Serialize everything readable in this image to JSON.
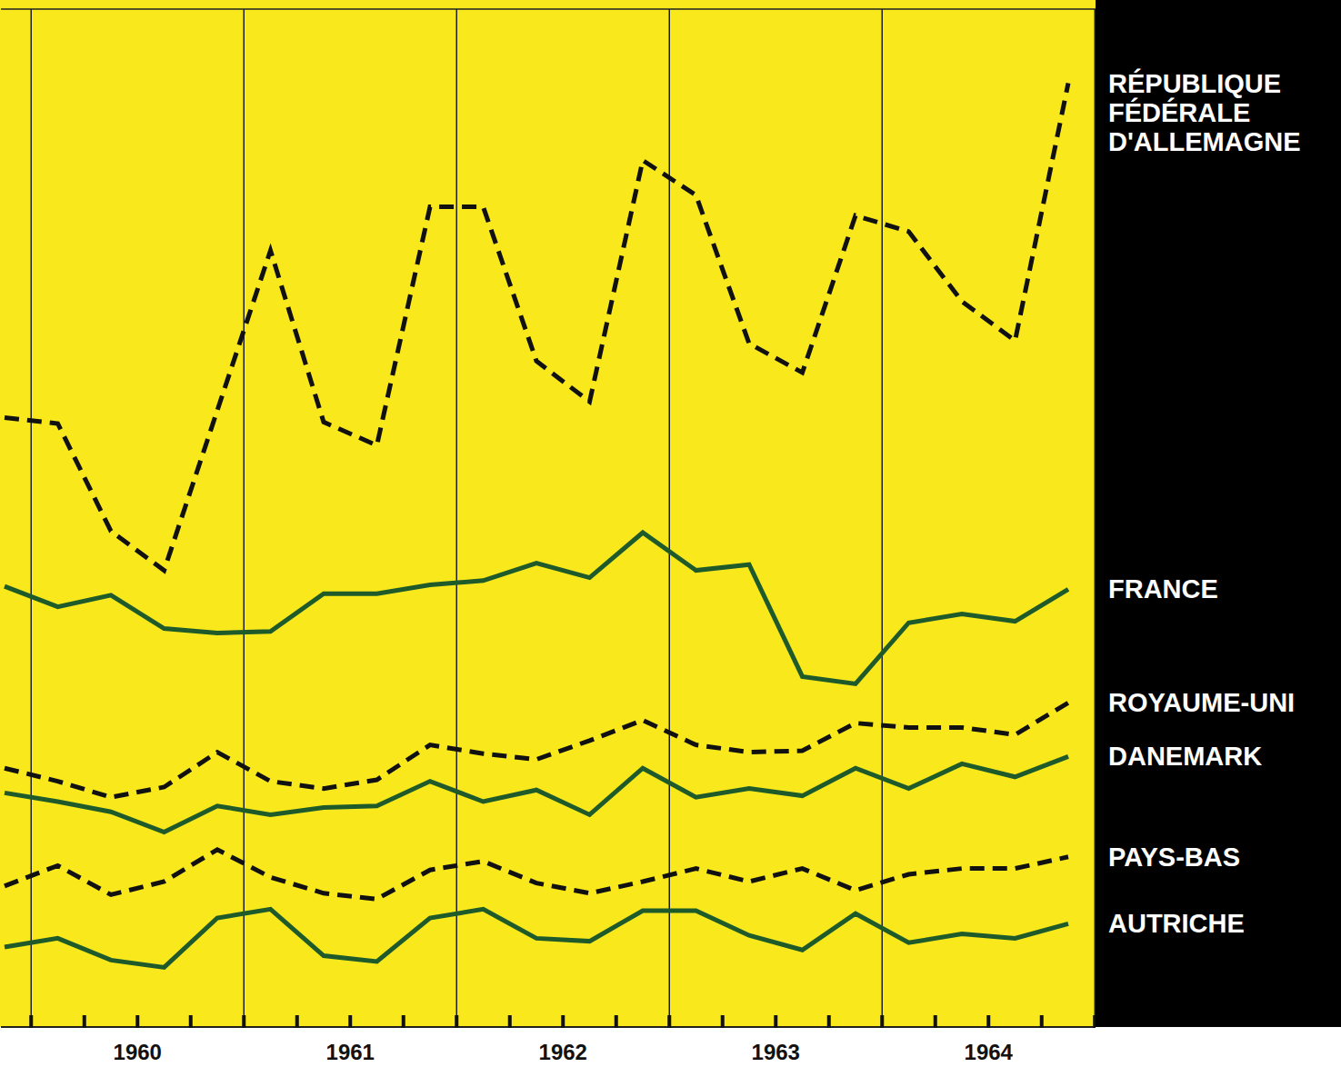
{
  "chart_data": {
    "type": "line",
    "categories": [
      null,
      null,
      "1960",
      null,
      null,
      null,
      "1961",
      null,
      null,
      null,
      "1962",
      null,
      null,
      null,
      "1963",
      null,
      null,
      null,
      "1964",
      null,
      null
    ],
    "series": [
      {
        "name": "RÉPUBLIQUE FÉDÉRALE D'ALLEMAGNE",
        "color": "#111111",
        "line_style": "dashed",
        "values": [
          4.19,
          4.15,
          3.41,
          3.14,
          4.24,
          5.34,
          4.16,
          4.0,
          5.64,
          5.64,
          4.58,
          4.3,
          5.96,
          5.72,
          4.7,
          4.5,
          5.58,
          5.47,
          4.99,
          4.72,
          6.49
        ]
      },
      {
        "name": "FRANCE",
        "color": "#1e5a2a",
        "line_style": "solid",
        "values": [
          3.03,
          2.89,
          2.97,
          2.74,
          2.71,
          2.72,
          2.98,
          2.98,
          3.04,
          3.07,
          3.19,
          3.09,
          3.4,
          3.14,
          3.18,
          2.41,
          2.36,
          2.78,
          2.84,
          2.79,
          3.01
        ]
      },
      {
        "name": "ROYAUME-UNI",
        "color": "#111111",
        "line_style": "dashed",
        "values": [
          1.78,
          1.69,
          1.58,
          1.65,
          1.89,
          1.69,
          1.64,
          1.7,
          1.94,
          1.88,
          1.84,
          1.97,
          2.11,
          1.94,
          1.89,
          1.9,
          2.09,
          2.06,
          2.06,
          2.01,
          2.23
        ]
      },
      {
        "name": "DANEMARK",
        "color": "#1e5a2a",
        "line_style": "solid",
        "values": [
          1.61,
          1.55,
          1.48,
          1.34,
          1.52,
          1.46,
          1.51,
          1.52,
          1.69,
          1.55,
          1.63,
          1.46,
          1.78,
          1.58,
          1.64,
          1.59,
          1.78,
          1.64,
          1.81,
          1.72,
          1.86
        ]
      },
      {
        "name": "PAYS-BAS",
        "color": "#111111",
        "line_style": "dashed",
        "values": [
          0.97,
          1.11,
          0.91,
          1.0,
          1.22,
          1.03,
          0.92,
          0.88,
          1.08,
          1.14,
          0.99,
          0.92,
          1.0,
          1.09,
          1.0,
          1.09,
          0.94,
          1.05,
          1.09,
          1.09,
          1.17
        ]
      },
      {
        "name": "AUTRICHE",
        "color": "#1e5a2a",
        "line_style": "solid",
        "values": [
          0.55,
          0.61,
          0.46,
          0.41,
          0.75,
          0.81,
          0.49,
          0.45,
          0.75,
          0.81,
          0.61,
          0.59,
          0.8,
          0.8,
          0.63,
          0.53,
          0.78,
          0.58,
          0.64,
          0.61,
          0.71
        ]
      }
    ],
    "ylim": [
      0,
      7
    ],
    "yticks": [
      0,
      1,
      2,
      3,
      4,
      5,
      6,
      7
    ],
    "grid": true,
    "tick_labels": "x",
    "legend": "right"
  }
}
